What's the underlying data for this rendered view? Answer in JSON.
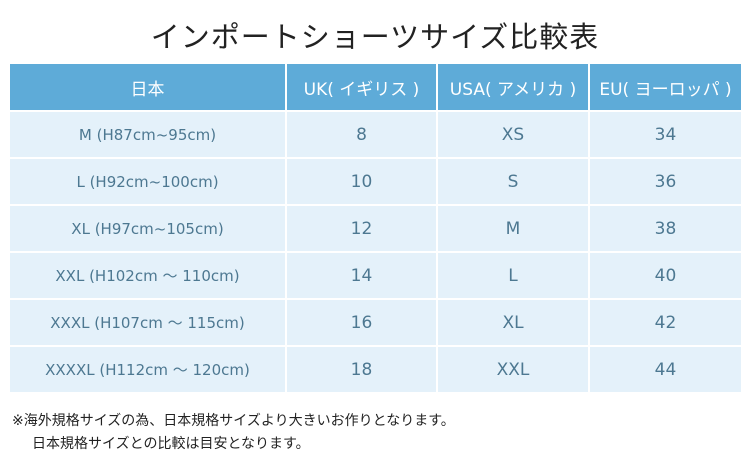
{
  "header": {
    "title": "インポートショーツサイズ比較表"
  },
  "table": {
    "columns": [
      "日本",
      "UK( イギリス )",
      "USA( アメリカ )",
      "EU( ヨーロッパ )"
    ],
    "rows": [
      [
        "M (H87cm~95cm)",
        "8",
        "XS",
        "34"
      ],
      [
        "L (H92cm~100cm)",
        "10",
        "S",
        "36"
      ],
      [
        "XL (H97cm~105cm)",
        "12",
        "M",
        "38"
      ],
      [
        "XXL (H102cm 〜 110cm)",
        "14",
        "L",
        "40"
      ],
      [
        "XXXL (H107cm 〜 115cm)",
        "16",
        "XL",
        "42"
      ],
      [
        "XXXXL (H112cm 〜 120cm)",
        "18",
        "XXL",
        "44"
      ]
    ]
  },
  "notes": [
    "※海外規格サイズの為、日本規格サイズより大きいお作りとなります。",
    "日本規格サイズとの比較は目安となります。"
  ]
}
